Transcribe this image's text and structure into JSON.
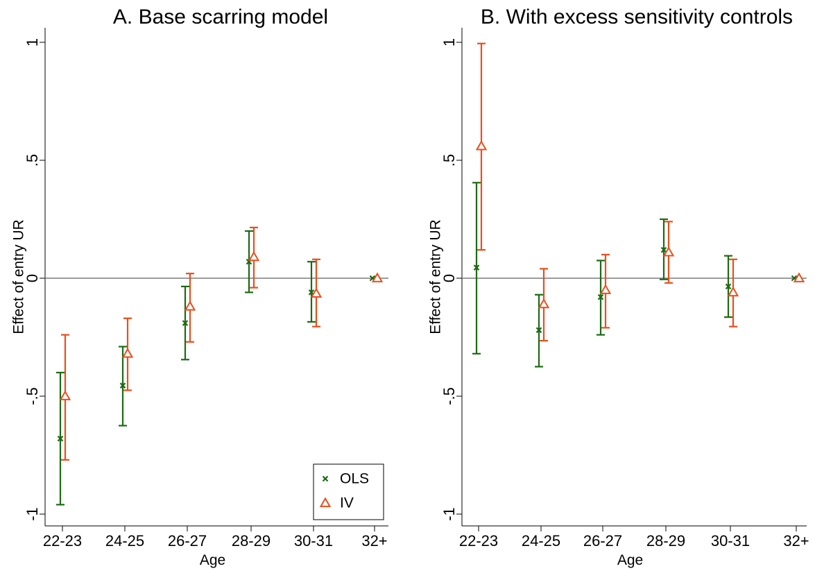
{
  "chart_data": [
    {
      "type": "scatter",
      "title": "A. Base scarring model",
      "xlabel": "Age",
      "ylabel": "Effect of entry UR",
      "categories": [
        "22-23",
        "24-25",
        "26-27",
        "28-29",
        "30-31",
        "32+"
      ],
      "ylim": [
        -1.05,
        1.0
      ],
      "yticks": [
        {
          "value": 1,
          "label": "1"
        },
        {
          "value": 0.5,
          "label": ".5"
        },
        {
          "value": 0,
          "label": "0"
        },
        {
          "value": -0.5,
          "label": "-.5"
        },
        {
          "value": -1,
          "label": "-1"
        }
      ],
      "reference_line": 0,
      "grid": false,
      "legend": {
        "placement": "bottom-right",
        "entries": [
          "OLS",
          "IV"
        ]
      },
      "series": [
        {
          "name": "OLS",
          "marker": "x",
          "color": "#1a6b12",
          "values": [
            -0.68,
            -0.455,
            -0.19,
            0.07,
            -0.06,
            0.0
          ],
          "lower": [
            -0.96,
            -0.625,
            -0.345,
            -0.06,
            -0.185,
            null
          ],
          "upper": [
            -0.4,
            -0.29,
            -0.035,
            0.2,
            0.07,
            null
          ]
        },
        {
          "name": "IV",
          "marker": "triangle",
          "color": "#ea4d1b",
          "values": [
            -0.5,
            -0.32,
            -0.12,
            0.09,
            -0.065,
            0.0
          ],
          "lower": [
            -0.77,
            -0.475,
            -0.27,
            -0.04,
            -0.205,
            null
          ],
          "upper": [
            -0.24,
            -0.17,
            0.02,
            0.215,
            0.08,
            null
          ]
        }
      ]
    },
    {
      "type": "scatter",
      "title": "B. With excess sensitivity controls",
      "xlabel": "Age",
      "ylabel": "Effect of entry UR",
      "categories": [
        "22-23",
        "24-25",
        "26-27",
        "28-29",
        "30-31",
        "32+"
      ],
      "ylim": [
        -1.05,
        1.0
      ],
      "yticks": [
        {
          "value": 1,
          "label": "1"
        },
        {
          "value": 0.5,
          "label": ".5"
        },
        {
          "value": 0,
          "label": "0"
        },
        {
          "value": -0.5,
          "label": "-.5"
        },
        {
          "value": -1,
          "label": "-1"
        }
      ],
      "reference_line": 0,
      "grid": false,
      "series": [
        {
          "name": "OLS",
          "marker": "x",
          "color": "#1a6b12",
          "values": [
            0.045,
            -0.22,
            -0.08,
            0.12,
            -0.035,
            0.0
          ],
          "lower": [
            -0.32,
            -0.375,
            -0.24,
            -0.005,
            -0.165,
            null
          ],
          "upper": [
            0.405,
            -0.07,
            0.075,
            0.25,
            0.095,
            null
          ]
        },
        {
          "name": "IV",
          "marker": "triangle",
          "color": "#ea4d1b",
          "values": [
            0.56,
            -0.11,
            -0.05,
            0.11,
            -0.06,
            0.0
          ],
          "lower": [
            0.12,
            -0.265,
            -0.21,
            -0.02,
            -0.205,
            null
          ],
          "upper": [
            0.995,
            0.04,
            0.1,
            0.24,
            0.08,
            null
          ]
        }
      ]
    }
  ]
}
